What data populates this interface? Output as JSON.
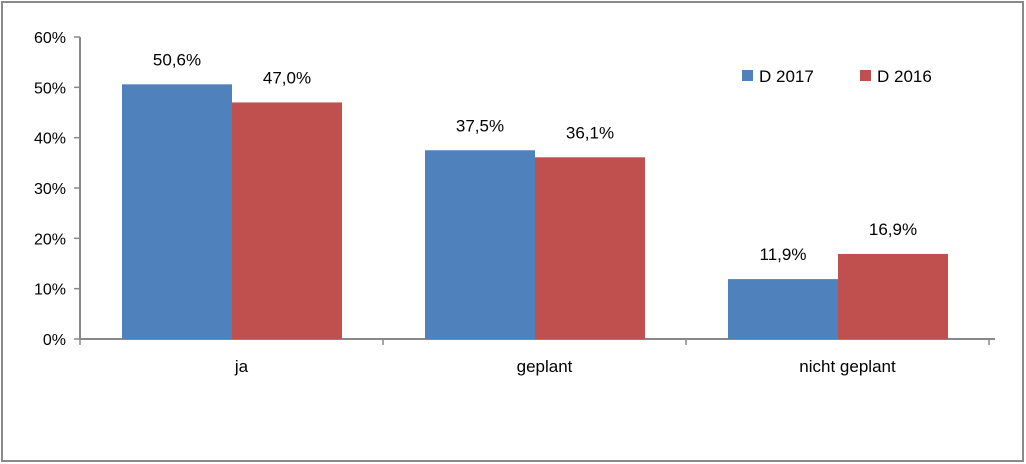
{
  "chart_data": {
    "type": "bar",
    "categories": [
      "ja",
      "geplant",
      "nicht geplant"
    ],
    "series": [
      {
        "name": "D 2017",
        "values": [
          50.6,
          37.5,
          11.9
        ],
        "labels": [
          "50,6%",
          "37,5%",
          "11,9%"
        ],
        "color": "#4f81bd"
      },
      {
        "name": "D 2016",
        "values": [
          47.0,
          36.1,
          16.9
        ],
        "labels": [
          "47,0%",
          "36,1%",
          "16,9%"
        ],
        "color": "#c0504d"
      }
    ],
    "y_ticks": [
      {
        "value": 0,
        "label": "0%"
      },
      {
        "value": 10,
        "label": "10%"
      },
      {
        "value": 20,
        "label": "20%"
      },
      {
        "value": 30,
        "label": "30%"
      },
      {
        "value": 40,
        "label": "40%"
      },
      {
        "value": 50,
        "label": "50%"
      },
      {
        "value": 60,
        "label": "60%"
      }
    ],
    "ylim": [
      0,
      60
    ],
    "title": "",
    "xlabel": "",
    "ylabel": "",
    "grid": false,
    "legend_position": "top-right"
  }
}
